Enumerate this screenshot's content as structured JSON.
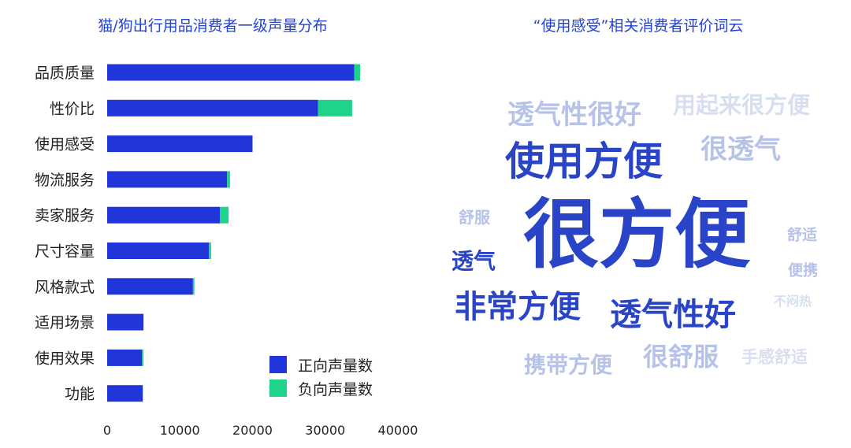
{
  "chart_data": [
    {
      "type": "bar",
      "orientation": "horizontal",
      "stacked": true,
      "title": "猫/狗出行用品消费者一级声量分布",
      "categories": [
        "品质质量",
        "性价比",
        "使用感受",
        "物流服务",
        "卖家服务",
        "尺寸容量",
        "风格款式",
        "适用场景",
        "使用效果",
        "功能"
      ],
      "series": [
        {
          "name": "正向声量数",
          "color": "#2136d8",
          "values": [
            34000,
            29000,
            20000,
            16500,
            15500,
            14000,
            11800,
            5000,
            4800,
            4900
          ]
        },
        {
          "name": "负向声量数",
          "color": "#1fd48a",
          "values": [
            800,
            4700,
            0,
            400,
            1200,
            300,
            200,
            0,
            200,
            0
          ]
        }
      ],
      "xlim": [
        0,
        40000
      ],
      "xticks": [
        "0",
        "10000",
        "20000",
        "30000",
        "40000"
      ],
      "grid": false,
      "legend_position": "bottom-right"
    },
    {
      "type": "wordcloud",
      "title": "“使用感受”相关消费者评价词云",
      "words": [
        {
          "text": "很方便",
          "weight": 100
        },
        {
          "text": "使用方便",
          "weight": 50
        },
        {
          "text": "非常方便",
          "weight": 42
        },
        {
          "text": "透气性好",
          "weight": 42
        },
        {
          "text": "透气性很好",
          "weight": 36
        },
        {
          "text": "很透气",
          "weight": 36
        },
        {
          "text": "很舒服",
          "weight": 33
        },
        {
          "text": "携带方便",
          "weight": 30
        },
        {
          "text": "用起来很方便",
          "weight": 30
        },
        {
          "text": "透气",
          "weight": 28
        },
        {
          "text": "舒服",
          "weight": 21
        },
        {
          "text": "手感舒适",
          "weight": 21
        },
        {
          "text": "舒适",
          "weight": 19
        },
        {
          "text": "便携",
          "weight": 19
        },
        {
          "text": "不闷热",
          "weight": 17
        }
      ]
    }
  ],
  "legend": {
    "positive": {
      "label": "正向声量数",
      "color": "#2136d8"
    },
    "negative": {
      "label": "负向声量数",
      "color": "#1fd48a"
    }
  },
  "wordcloud_colors": {
    "primary": "#2a44c8",
    "light": "#b7c2e8",
    "lighter": "#d7deef"
  }
}
